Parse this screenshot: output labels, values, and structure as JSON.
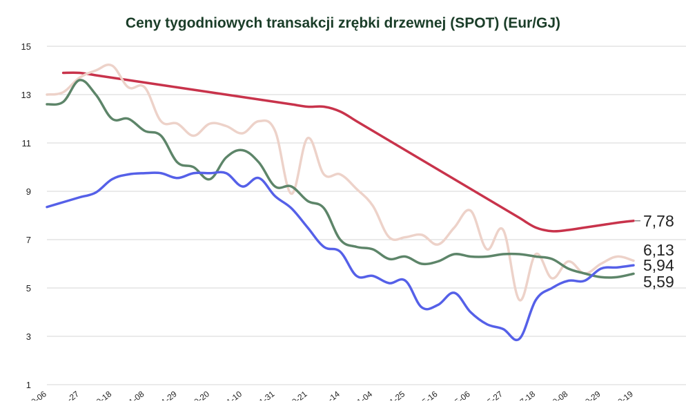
{
  "chart_data": {
    "type": "line",
    "title": "Ceny tygodniowych transakcji zrębki drzewnej (SPOT) (Eur/GJ)",
    "ylim": [
      1,
      15
    ],
    "yticks": [
      1,
      3,
      5,
      7,
      9,
      11,
      13,
      15
    ],
    "grid": true,
    "legend": "none",
    "x_tick_labels": [
      "0-06",
      "-27",
      "0-18",
      "1-08",
      "1-29",
      "0-20",
      "1-10",
      "1-31",
      "0-21",
      "-14",
      "1-04",
      "1-25",
      "5-16",
      "5-06",
      "5-27",
      "7-18",
      "0-08",
      "0-29",
      "0-19"
    ],
    "x": [
      0,
      0.5,
      1,
      1.5,
      2,
      2.5,
      3,
      3.5,
      4,
      4.5,
      5,
      5.5,
      6,
      6.5,
      7,
      7.5,
      8,
      8.5,
      9,
      9.5,
      10,
      10.5,
      11,
      11.5,
      12,
      12.5,
      13,
      13.5,
      14,
      14.5,
      15,
      15.5,
      16,
      16.5,
      17,
      17.5,
      18
    ],
    "series": [
      {
        "color": "#c8334b",
        "end_label": "7,78",
        "values": [
          null,
          13.9,
          13.9,
          13.8,
          13.7,
          13.6,
          13.5,
          13.4,
          13.3,
          13.2,
          13.1,
          13.0,
          12.9,
          12.8,
          12.7,
          12.6,
          12.5,
          12.5,
          12.3,
          11.9,
          11.5,
          11.1,
          10.7,
          10.3,
          9.9,
          9.5,
          9.1,
          8.7,
          8.3,
          7.9,
          7.5,
          7.35,
          7.4,
          7.5,
          7.6,
          7.7,
          7.78
        ]
      },
      {
        "color": "#edd2c9",
        "end_label": "6,13",
        "values": [
          13.0,
          13.1,
          13.7,
          14.0,
          14.2,
          13.3,
          13.3,
          11.9,
          11.8,
          11.3,
          11.8,
          11.7,
          11.4,
          11.9,
          11.5,
          8.9,
          11.2,
          9.7,
          9.7,
          9.1,
          8.4,
          7.1,
          7.1,
          7.2,
          6.8,
          7.5,
          8.2,
          6.6,
          7.4,
          4.5,
          6.4,
          5.4,
          6.1,
          5.6,
          6.0,
          6.3,
          6.13
        ]
      },
      {
        "color": "#5d8569",
        "end_label": "5,59",
        "values": [
          12.6,
          12.7,
          13.6,
          13.0,
          12.0,
          12.0,
          11.5,
          11.3,
          10.2,
          10.0,
          9.5,
          10.4,
          10.7,
          10.2,
          9.2,
          9.2,
          8.6,
          8.3,
          7.0,
          6.7,
          6.6,
          6.2,
          6.3,
          6.0,
          6.1,
          6.4,
          6.3,
          6.3,
          6.4,
          6.4,
          6.3,
          6.2,
          5.8,
          5.6,
          5.45,
          5.45,
          5.59
        ]
      },
      {
        "color": "#5560e8",
        "end_label": "5,94",
        "values": [
          8.35,
          8.55,
          8.75,
          8.95,
          9.5,
          9.7,
          9.75,
          9.75,
          9.55,
          9.75,
          9.75,
          9.75,
          9.2,
          9.55,
          8.8,
          8.3,
          7.5,
          6.7,
          6.5,
          5.5,
          5.5,
          5.2,
          5.3,
          4.2,
          4.3,
          4.8,
          4.0,
          3.5,
          3.3,
          2.9,
          4.5,
          5.0,
          5.3,
          5.3,
          5.8,
          5.85,
          5.94
        ]
      }
    ]
  }
}
